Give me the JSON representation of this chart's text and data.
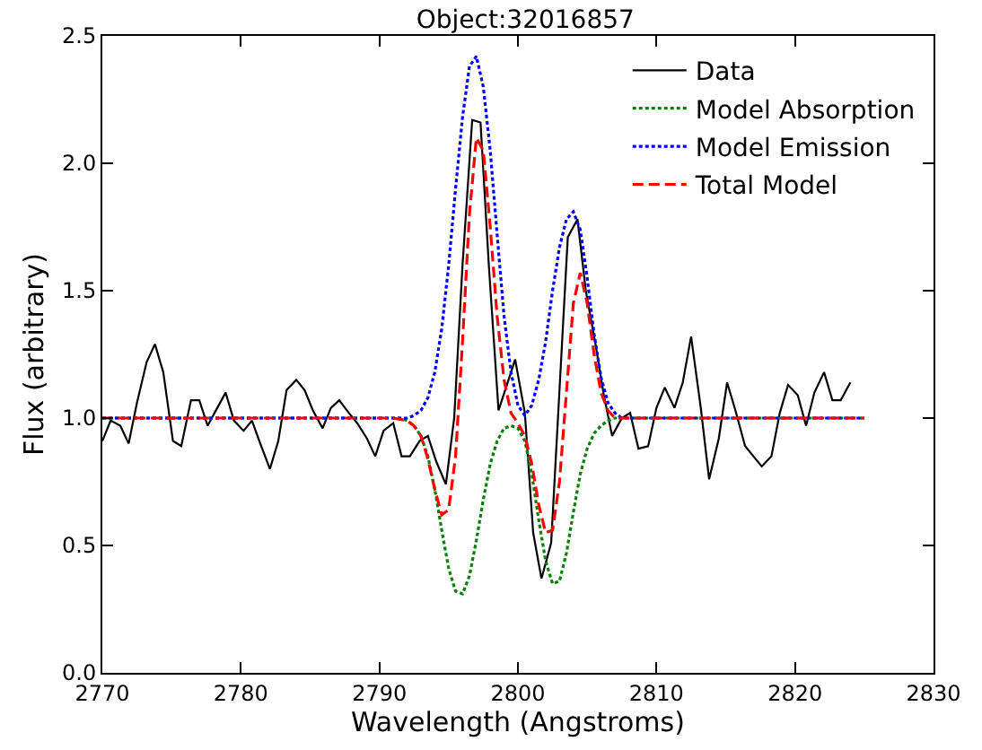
{
  "chart_data": {
    "type": "line",
    "title": "Object:32016857",
    "xlabel": "Wavelength (Angstroms)",
    "ylabel": "Flux (arbitrary)",
    "xlim": [
      2770,
      2830
    ],
    "xticks": [
      2770,
      2780,
      2790,
      2800,
      2810,
      2820,
      2830
    ],
    "ylim": [
      0,
      2.5
    ],
    "yticks": [
      {
        "value": 0,
        "label": "0.0"
      },
      {
        "value": 0.5,
        "label": "0.5"
      },
      {
        "value": 1,
        "label": "1.0"
      },
      {
        "value": 1.5,
        "label": "1.5"
      },
      {
        "value": 2,
        "label": "2.0"
      },
      {
        "value": 2.5,
        "label": "2.5"
      }
    ],
    "grid": false,
    "legend": "top right",
    "marker": "none",
    "series": [
      {
        "name": "Data",
        "color": "#000000",
        "line_style": "solid",
        "x": [
          2770.0,
          2770.6,
          2771.3,
          2771.9,
          2772.5,
          2773.2,
          2773.8,
          2774.4,
          2775.1,
          2775.7,
          2776.4,
          2777.0,
          2777.6,
          2778.3,
          2778.9,
          2779.5,
          2780.2,
          2780.8,
          2781.4,
          2782.1,
          2782.7,
          2783.3,
          2784.0,
          2784.6,
          2785.2,
          2785.9,
          2786.5,
          2787.1,
          2787.8,
          2788.4,
          2789.1,
          2789.7,
          2790.3,
          2791.0,
          2791.6,
          2792.2,
          2792.9,
          2793.5,
          2794.1,
          2794.8,
          2795.4,
          2796.0,
          2796.7,
          2797.3,
          2797.9,
          2798.6,
          2799.2,
          2799.8,
          2800.5,
          2801.1,
          2801.7,
          2802.4,
          2803.0,
          2803.6,
          2804.3,
          2804.9,
          2805.6,
          2806.2,
          2806.8,
          2807.5,
          2808.1,
          2808.7,
          2809.4,
          2810.0,
          2810.6,
          2811.3,
          2811.9,
          2812.5,
          2813.2,
          2813.8,
          2814.5,
          2815.1,
          2815.7,
          2816.4,
          2817.0,
          2817.6,
          2818.3,
          2818.9,
          2819.5,
          2820.2,
          2820.8,
          2821.4,
          2822.1,
          2822.7,
          2823.3,
          2824.0
        ],
        "values": [
          0.91,
          0.99,
          0.97,
          0.9,
          1.06,
          1.22,
          1.29,
          1.18,
          0.91,
          0.89,
          1.07,
          1.07,
          0.97,
          1.04,
          1.1,
          0.99,
          0.95,
          0.99,
          0.9,
          0.8,
          0.91,
          1.11,
          1.15,
          1.11,
          1.03,
          0.96,
          1.04,
          1.07,
          1.02,
          0.98,
          0.92,
          0.85,
          0.95,
          0.98,
          0.85,
          0.85,
          0.91,
          0.93,
          0.83,
          0.74,
          1.0,
          1.6,
          2.17,
          2.16,
          1.6,
          1.03,
          1.13,
          1.23,
          1.02,
          0.55,
          0.37,
          0.51,
          1.11,
          1.71,
          1.78,
          1.5,
          1.29,
          1.09,
          0.93,
          1.0,
          1.02,
          0.88,
          0.89,
          1.04,
          1.12,
          1.04,
          1.14,
          1.32,
          1.04,
          0.76,
          0.92,
          1.14,
          1.03,
          0.89,
          0.85,
          0.81,
          0.85,
          1.02,
          1.13,
          1.09,
          0.97,
          1.1,
          1.18,
          1.07,
          1.07,
          1.14
        ]
      },
      {
        "name": "Model Absorption",
        "color": "#008000",
        "line_style": "dotted",
        "x": [
          2770,
          2791,
          2791.5,
          2792,
          2792.5,
          2793,
          2793.5,
          2794,
          2794.5,
          2795,
          2795.5,
          2796,
          2796.5,
          2797,
          2797.5,
          2798,
          2798.5,
          2799,
          2799.5,
          2800,
          2800.5,
          2801,
          2801.5,
          2802,
          2802.5,
          2803,
          2803.5,
          2804,
          2804.5,
          2805,
          2805.5,
          2806,
          2806.5,
          2807,
          2807.5,
          2808,
          2825
        ],
        "values": [
          1.0,
          1.0,
          1.0,
          0.99,
          0.97,
          0.93,
          0.85,
          0.72,
          0.56,
          0.41,
          0.32,
          0.31,
          0.38,
          0.52,
          0.68,
          0.82,
          0.91,
          0.96,
          0.97,
          0.96,
          0.91,
          0.78,
          0.6,
          0.44,
          0.35,
          0.36,
          0.47,
          0.63,
          0.78,
          0.88,
          0.94,
          0.97,
          0.99,
          1.0,
          1.0,
          1.0,
          1.0
        ]
      },
      {
        "name": "Model Emission",
        "color": "#0000ff",
        "line_style": "dotted",
        "x": [
          2770,
          2791,
          2792,
          2792.5,
          2793,
          2793.5,
          2794,
          2794.5,
          2795,
          2795.5,
          2796,
          2796.5,
          2797,
          2797.5,
          2798,
          2798.5,
          2799,
          2799.5,
          2800,
          2800.5,
          2801,
          2801.5,
          2802,
          2802.5,
          2803,
          2803.5,
          2804,
          2804.5,
          2805,
          2805.5,
          2806,
          2806.5,
          2807,
          2807.5,
          2808,
          2825
        ],
        "values": [
          1.0,
          1.0,
          1.0,
          1.01,
          1.03,
          1.08,
          1.18,
          1.35,
          1.6,
          1.9,
          2.18,
          2.38,
          2.42,
          2.3,
          2.05,
          1.72,
          1.4,
          1.18,
          1.05,
          1.01,
          1.05,
          1.15,
          1.3,
          1.5,
          1.67,
          1.78,
          1.81,
          1.74,
          1.55,
          1.33,
          1.16,
          1.06,
          1.02,
          1.0,
          1.0,
          1.0
        ]
      },
      {
        "name": "Total Model",
        "color": "#ff0000",
        "line_style": "dashed",
        "x": [
          2770,
          2791,
          2792,
          2792.5,
          2793,
          2793.5,
          2794,
          2794.5,
          2795,
          2795.5,
          2796,
          2796.5,
          2797,
          2797.5,
          2798,
          2798.5,
          2799,
          2799.5,
          2800,
          2800.5,
          2801,
          2801.5,
          2802,
          2802.5,
          2803,
          2803.5,
          2804,
          2804.5,
          2805,
          2805.5,
          2806,
          2806.5,
          2807,
          2808,
          2825
        ],
        "values": [
          1.0,
          1.0,
          0.99,
          0.97,
          0.93,
          0.84,
          0.72,
          0.62,
          0.64,
          0.85,
          1.3,
          1.8,
          2.1,
          2.05,
          1.75,
          1.4,
          1.15,
          1.02,
          0.98,
          0.93,
          0.82,
          0.66,
          0.55,
          0.56,
          0.75,
          1.1,
          1.45,
          1.57,
          1.45,
          1.25,
          1.1,
          1.03,
          1.0,
          1.0,
          1.0
        ]
      }
    ]
  }
}
